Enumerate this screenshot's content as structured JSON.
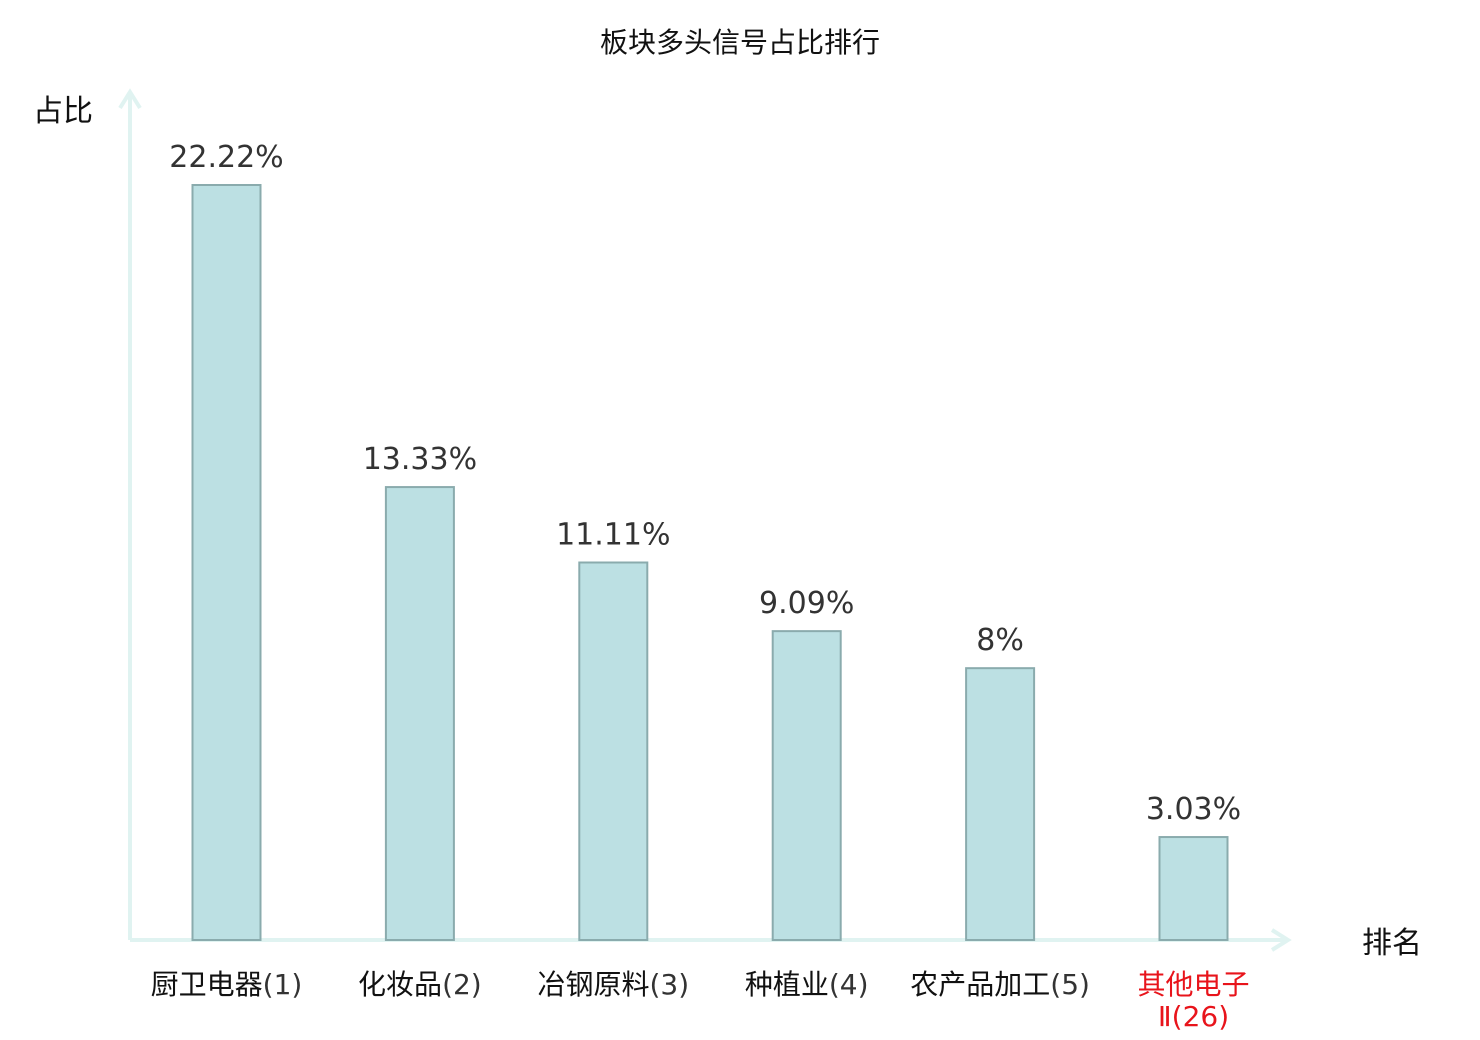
{
  "chart_data": {
    "type": "bar",
    "title": "板块多头信号占比排行",
    "ylabel": "占比",
    "xlabel": "排名",
    "ylim": [
      0,
      25
    ],
    "grid": false,
    "categories": [
      {
        "name": "厨卫电器",
        "rank": "(1)",
        "highlight": false
      },
      {
        "name": "化妆品",
        "rank": "(2)",
        "highlight": false
      },
      {
        "name": "冶钢原料",
        "rank": "(3)",
        "highlight": false
      },
      {
        "name": "种植业",
        "rank": "(4)",
        "highlight": false
      },
      {
        "name": "农产品加工",
        "rank": "(5)",
        "highlight": false
      },
      {
        "name": "其他电子Ⅱ",
        "rank": "(26)",
        "highlight": true
      }
    ],
    "values": [
      22.22,
      13.33,
      11.11,
      9.09,
      8,
      3.03
    ],
    "value_labels": [
      "22.22%",
      "13.33%",
      "11.11%",
      "9.09%",
      "8%",
      "3.03%"
    ]
  },
  "colors": {
    "bar_fill": "#bce0e3",
    "bar_stroke": "#8aabad",
    "axis": "#e0f3f1",
    "highlight": "#e8141b",
    "text": "#111111",
    "value_text": "#333333"
  }
}
